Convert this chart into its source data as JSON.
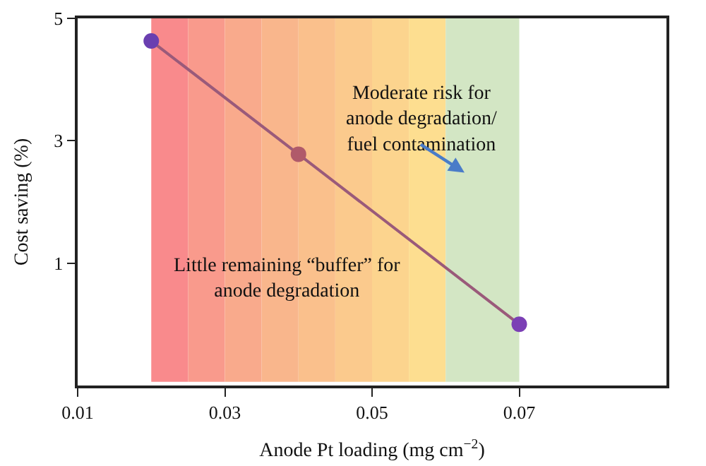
{
  "chart_data": {
    "type": "line",
    "xlabel": "Anode Pt loading (mg cm$^{−2}$)",
    "ylabel": "Cost saving (%)",
    "x": [
      0.02,
      0.04,
      0.07
    ],
    "series": [
      {
        "color": "#9a5a7a",
        "colors": [
          "#6a3fb0",
          "#b05a6a",
          "#7b3fb5"
        ],
        "values": [
          4.63,
          2.78,
          0
        ]
      }
    ],
    "marker": "circle",
    "line_style": "solid",
    "xlim": [
      0.01,
      0.09
    ],
    "xticks": [
      0.01,
      0.03,
      0.05,
      0.07
    ],
    "ylim": [
      -1,
      5
    ],
    "yticks": [
      1,
      3,
      5
    ],
    "grid": false,
    "bands": [
      {
        "axis": "x",
        "from": 0.02,
        "to": 0.025,
        "color": "#f98a8c"
      },
      {
        "axis": "x",
        "from": 0.025,
        "to": 0.03,
        "color": "#f99a8c"
      },
      {
        "axis": "x",
        "from": 0.03,
        "to": 0.035,
        "color": "#f9aa8c"
      },
      {
        "axis": "x",
        "from": 0.035,
        "to": 0.04,
        "color": "#f9b68c"
      },
      {
        "axis": "x",
        "from": 0.04,
        "to": 0.045,
        "color": "#fac08c"
      },
      {
        "axis": "x",
        "from": 0.045,
        "to": 0.05,
        "color": "#fbca8d"
      },
      {
        "axis": "x",
        "from": 0.05,
        "to": 0.055,
        "color": "#fcd48e"
      },
      {
        "axis": "x",
        "from": 0.055,
        "to": 0.06,
        "color": "#fdde90"
      },
      {
        "axis": "x",
        "from": 0.06,
        "to": 0.07,
        "color": "#d3e6c4"
      }
    ],
    "annotations": [
      "Moderate risk for\nanode degradation/\nfuel contamination",
      "Little remaining “buffer” for\nanode degradation"
    ]
  }
}
